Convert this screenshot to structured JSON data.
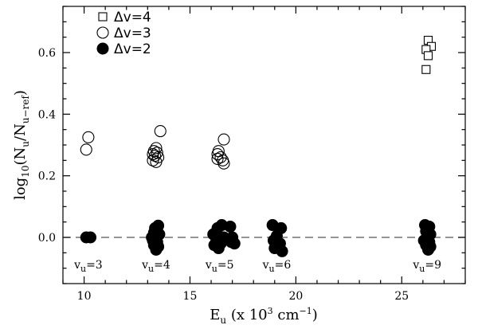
{
  "chart_data": {
    "type": "scatter",
    "xlabel": "E",
    "xlabel_sub": "u",
    "xlabel_rest": " (x 10",
    "xlabel_sup": "3",
    "xlabel_unit": " cm",
    "xlabel_unit_sup": "−1",
    "xlabel_close": ")",
    "ylabel": "log",
    "ylabel_sub": "10",
    "ylabel_mid": "(N",
    "ylabel_sub2": "u",
    "ylabel_div": "/N",
    "ylabel_sub3": "u−ref",
    "ylabel_close": ")",
    "xlim": [
      9,
      28
    ],
    "ylim": [
      -0.15,
      0.75
    ],
    "x_ticks": [
      10,
      15,
      20,
      25
    ],
    "x_tick_labels": [
      "10",
      "15",
      "20",
      "25"
    ],
    "y_ticks": [
      0.0,
      0.2,
      0.4,
      0.6
    ],
    "y_tick_labels": [
      "0.0",
      "0.2",
      "0.4",
      "0.6"
    ],
    "reference_line": 0.0,
    "legend": [
      {
        "symbol": "open-square",
        "label": "Δv=4"
      },
      {
        "symbol": "open-circle",
        "label": "Δv=3"
      },
      {
        "symbol": "filled-circle",
        "label": "Δv=2"
      }
    ],
    "annotations": [
      {
        "x": 10.2,
        "base": "v",
        "sub": "u",
        "rest": "=3"
      },
      {
        "x": 13.4,
        "base": "v",
        "sub": "u",
        "rest": "=4"
      },
      {
        "x": 16.4,
        "base": "v",
        "sub": "u",
        "rest": "=5"
      },
      {
        "x": 19.1,
        "base": "v",
        "sub": "u",
        "rest": "=6"
      },
      {
        "x": 26.2,
        "base": "v",
        "sub": "u",
        "rest": "=9"
      }
    ],
    "series": [
      {
        "name": "Δv=4",
        "marker": "open-square",
        "points": [
          [
            26.25,
            0.64
          ],
          [
            26.4,
            0.62
          ],
          [
            26.15,
            0.61
          ],
          [
            26.25,
            0.59
          ],
          [
            26.15,
            0.545
          ]
        ]
      },
      {
        "name": "Δv=3",
        "marker": "open-circle",
        "points": [
          [
            10.2,
            0.325
          ],
          [
            10.1,
            0.285
          ],
          [
            13.6,
            0.345
          ],
          [
            13.4,
            0.29
          ],
          [
            13.3,
            0.28
          ],
          [
            13.45,
            0.275
          ],
          [
            13.25,
            0.27
          ],
          [
            13.35,
            0.265
          ],
          [
            13.5,
            0.26
          ],
          [
            13.25,
            0.25
          ],
          [
            13.4,
            0.245
          ],
          [
            16.6,
            0.318
          ],
          [
            16.35,
            0.28
          ],
          [
            16.3,
            0.27
          ],
          [
            16.45,
            0.26
          ],
          [
            16.3,
            0.255
          ],
          [
            16.55,
            0.25
          ],
          [
            16.6,
            0.24
          ]
        ]
      },
      {
        "name": "Δv=2",
        "marker": "filled-circle",
        "points": [
          [
            10.1,
            0.0
          ],
          [
            10.3,
            0.0
          ],
          [
            13.2,
            0.0
          ],
          [
            13.35,
            0.03
          ],
          [
            13.5,
            0.038
          ],
          [
            13.3,
            0.015
          ],
          [
            13.55,
            0.01
          ],
          [
            13.25,
            -0.01
          ],
          [
            13.45,
            -0.015
          ],
          [
            13.3,
            -0.025
          ],
          [
            13.5,
            -0.03
          ],
          [
            13.4,
            -0.04
          ],
          [
            16.1,
            0.01
          ],
          [
            16.3,
            0.03
          ],
          [
            16.5,
            0.04
          ],
          [
            16.25,
            -0.01
          ],
          [
            16.45,
            -0.02
          ],
          [
            16.15,
            -0.025
          ],
          [
            16.35,
            -0.035
          ],
          [
            16.6,
            0.0
          ],
          [
            16.9,
            0.035
          ],
          [
            17.0,
            0.0
          ],
          [
            17.1,
            -0.02
          ],
          [
            16.95,
            -0.015
          ],
          [
            18.9,
            0.04
          ],
          [
            19.3,
            0.03
          ],
          [
            19.1,
            0.005
          ],
          [
            18.95,
            -0.01
          ],
          [
            19.25,
            -0.02
          ],
          [
            19.0,
            -0.035
          ],
          [
            19.35,
            -0.045
          ],
          [
            26.1,
            0.04
          ],
          [
            26.3,
            0.035
          ],
          [
            26.15,
            0.02
          ],
          [
            26.35,
            0.01
          ],
          [
            26.2,
            0.0
          ],
          [
            26.05,
            -0.01
          ],
          [
            26.3,
            -0.015
          ],
          [
            26.15,
            -0.025
          ],
          [
            26.35,
            -0.03
          ],
          [
            26.25,
            -0.04
          ]
        ]
      }
    ]
  }
}
